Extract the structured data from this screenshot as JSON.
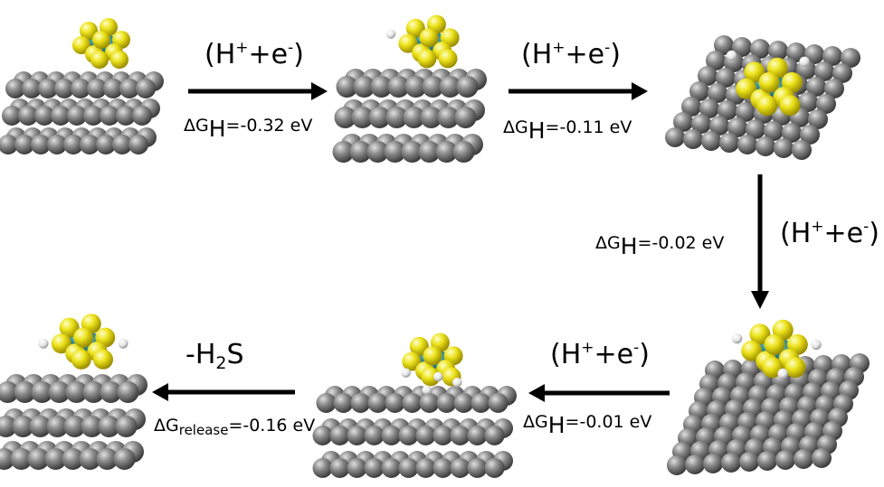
{
  "steps": [
    {
      "reactant": "(H",
      "plus": "+",
      "mid": "+e",
      "minus": "-",
      "close": ")",
      "dg_prefix": "ΔG",
      "dg_sub": "H",
      "dg_value": "=-0.32 eV"
    },
    {
      "reactant": "(H",
      "plus": "+",
      "mid": "+e",
      "minus": "-",
      "close": ")",
      "dg_prefix": "ΔG",
      "dg_sub": "H",
      "dg_value": "=-0.11 eV"
    },
    {
      "reactant": "(H",
      "plus": "+",
      "mid": "+e",
      "minus": "-",
      "close": ")",
      "dg_prefix": "ΔG",
      "dg_sub": "H",
      "dg_value": "=-0.02 eV"
    },
    {
      "reactant": "(H",
      "plus": "+",
      "mid": "+e",
      "minus": "-",
      "close": ")",
      "dg_prefix": "ΔG",
      "dg_sub": "H",
      "dg_value": "=-0.01 eV"
    }
  ],
  "release": {
    "label_prefix": "-H",
    "label_sub": "2",
    "label_suffix": "S",
    "dg_prefix": "ΔG",
    "dg_sub": "release",
    "dg_value": "=-0.16 eV"
  },
  "colors": {
    "carbon": "#6f6f6f",
    "sulfur": "#ece21a",
    "metal": "#2f8fa0",
    "hydrogen": "#f2f2f2",
    "arrow": "#000000"
  },
  "structures": [
    {
      "name": "initial-cluster",
      "substrate": "layered-flat",
      "adsorbed_h": 0
    },
    {
      "name": "one-h-cluster",
      "substrate": "layered-flat",
      "adsorbed_h": 1
    },
    {
      "name": "two-h-cluster",
      "substrate": "perspective",
      "adsorbed_h": 2
    },
    {
      "name": "three-h-cluster",
      "substrate": "perspective",
      "adsorbed_h": 3
    },
    {
      "name": "four-h-cluster",
      "substrate": "layered-flat",
      "adsorbed_h": 4
    },
    {
      "name": "released-cluster",
      "substrate": "layered-flat",
      "adsorbed_h": 2
    }
  ]
}
